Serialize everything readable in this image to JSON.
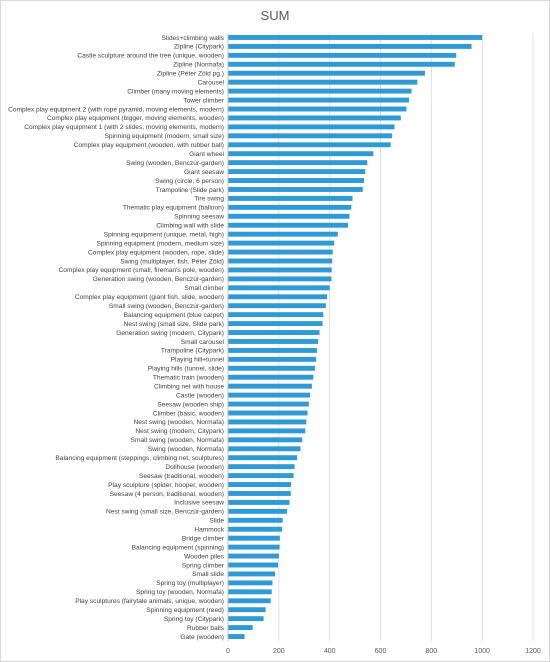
{
  "chart_data": {
    "type": "bar",
    "orientation": "horizontal",
    "title": "SUM",
    "xlim": [
      0,
      1200
    ],
    "x_ticks": [
      "0",
      "200",
      "400",
      "600",
      "800",
      "1000",
      "1200"
    ],
    "grid": true,
    "bar_color": "#2e9bd6",
    "categories": [
      "Slides+climbing walls",
      "Zipline (Citypark)",
      "Castle sculpture around the tree (unique, wooden)",
      "Zipline (Normafa)",
      "Zipline (Péter Zöld pg.)",
      "Carousel",
      "Climber (many moving elements)",
      "Tower climber",
      "Complex play equipment 2 (with rope pyramid, moving elements, modern)",
      "Complex play equipment (bigger, moving elements, wooden)",
      "Complex play equipment 1 (with 2 slides, moving elements, modern)",
      "Spinning equipment (modern, small size)",
      "Complex play equipment (wooden, with rubber ball)",
      "Giant wheel",
      "Swing (wooden, Benczúr-garden)",
      "Giant seesaw",
      "Swing (circle, 6 person)",
      "Trampoline (Slide park)",
      "Tire swing",
      "Thematic play equipment (balloon)",
      "Spinning seesaw",
      "Climbing wall with slide",
      "Spinning equipment (unique, metal, high)",
      "Spinning equipment (modern, medium size)",
      "Complex play equipment (wooden, rope, slide)",
      "Swing (multiplayer, fish, Péter Zöld)",
      "Complex play equipment (small, fireman's pole, wooden)",
      "Generation swing (wooden, Benczúr-garden)",
      "Small climber",
      "Complex play equipment (giant fish, slide, wooden)",
      "Small swing  (wooden, Benczúr-garden)",
      "Balancing equipment (blue carpet)",
      "Nest swing (small size, Slide park)",
      "Generation swing (modern, Citypark)",
      "Small carousel",
      "Trampoline (Citypark)",
      "Playing hill+tunnel",
      "Playing hills (tunnel, slide)",
      "Thematic train (wooden)",
      "Climbing net with house",
      "Castle (wooden)",
      "Seesaw (wooden ship)",
      "Climber (basic, wooden)",
      "Nest swing (wooden, Normafa)",
      "Nest swing (modern, Citypark)",
      "Small swing (wooden, Normafa)",
      "Swing (wooden, Normafa)",
      "Balancing equipment (steppings, climbing net, sculptures)",
      "Dollhouse (wooden)",
      "Seesaw (traditional, wooden)",
      "Play sculpture (spider, hooper, wooden)",
      "Seesaw (4 person, traditional, wooden)",
      "Inclusive seesaw",
      "Nest swing (small size, Benczúr-garden)",
      "Slide",
      "Hammock",
      "Bridge climber",
      "Balancing equipment (spinning)",
      "Wooden piles",
      "Spring climber",
      "Small slide",
      "Spring toy (multiplayer)",
      "Spring toy (wooden, Normafa)",
      "Play sculptures (fairytale animals, unique, wooden)",
      "Spinning equipment (reed)",
      "Spring toy (Citypark)",
      "Rubber balls",
      "Gate (wooden)"
    ],
    "values": [
      1000,
      958,
      898,
      892,
      775,
      745,
      722,
      712,
      702,
      680,
      655,
      645,
      640,
      572,
      548,
      540,
      535,
      530,
      490,
      485,
      478,
      472,
      432,
      418,
      412,
      410,
      408,
      407,
      400,
      390,
      385,
      375,
      372,
      360,
      355,
      350,
      346,
      342,
      336,
      330,
      323,
      318,
      313,
      308,
      304,
      292,
      285,
      272,
      262,
      258,
      248,
      247,
      242,
      232,
      215,
      213,
      204,
      203,
      200,
      197,
      185,
      175,
      172,
      168,
      148,
      140,
      97,
      65
    ]
  }
}
